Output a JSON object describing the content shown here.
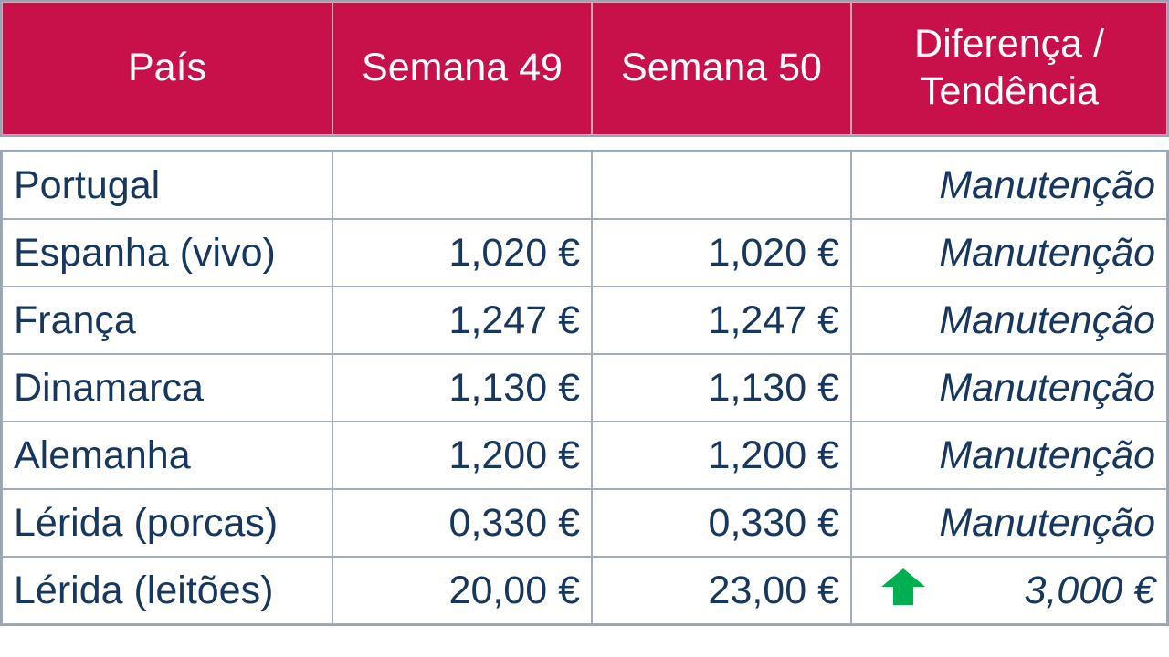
{
  "header": {
    "cells": [
      "País",
      "Semana 49",
      "Semana 50",
      "Diferença / Tendência"
    ]
  },
  "rows": [
    {
      "country": "Portugal",
      "trend": "Manutenção"
    },
    {
      "country": "Espanha (vivo)",
      "week49": "1,020 €",
      "week50": "1,020 €",
      "trend": "Manutenção"
    },
    {
      "country": "França",
      "week49": "1,247 €",
      "week50": "1,247 €",
      "trend": "Manutenção"
    },
    {
      "country": "Dinamarca",
      "week49": "1,130 €",
      "week50": "1,130 €",
      "trend": "Manutenção"
    },
    {
      "country": "Alemanha",
      "week49": "1,200 €",
      "week50": "1,200 €",
      "trend": "Manutenção"
    },
    {
      "country": "Lérida (porcas)",
      "week49": "0,330 €",
      "week50": "0,330 €",
      "trend": "Manutenção"
    },
    {
      "country": "Lérida (leitões)",
      "week49": "20,00 €",
      "week50": "23,00 €",
      "trend": "3,000 €"
    }
  ]
}
